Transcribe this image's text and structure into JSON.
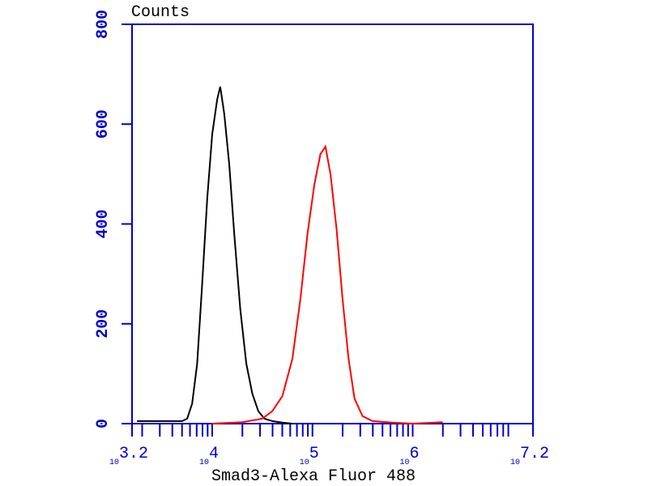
{
  "chart_data": {
    "type": "line",
    "y_label": "Counts",
    "x_label": "Smad3-Alexa Fluor 488",
    "x_scale": "log10",
    "x_tick_base": "10",
    "xlim": [
      3.2,
      7.2
    ],
    "xticks": [
      3.2,
      4,
      5,
      6,
      7.2
    ],
    "ylim": [
      0,
      800
    ],
    "yticks": [
      0,
      200,
      400,
      600,
      800
    ],
    "axis_color": "#0000cc",
    "series": [
      {
        "color": "#000000",
        "x": [
          3.25,
          3.4,
          3.55,
          3.7,
          3.75,
          3.8,
          3.85,
          3.9,
          3.95,
          4.0,
          4.05,
          4.08,
          4.12,
          4.17,
          4.22,
          4.28,
          4.34,
          4.4,
          4.46,
          4.52,
          4.6,
          4.7,
          4.8
        ],
        "values": [
          5,
          5,
          5,
          5,
          10,
          40,
          120,
          280,
          450,
          580,
          650,
          675,
          620,
          520,
          380,
          230,
          120,
          60,
          25,
          10,
          5,
          2,
          0
        ]
      },
      {
        "color": "#ff0000",
        "x": [
          4.0,
          4.3,
          4.5,
          4.6,
          4.7,
          4.8,
          4.88,
          4.95,
          5.02,
          5.08,
          5.13,
          5.18,
          5.24,
          5.3,
          5.36,
          5.42,
          5.5,
          5.6,
          5.8,
          6.0,
          6.3
        ],
        "values": [
          0,
          3,
          10,
          25,
          55,
          130,
          250,
          380,
          480,
          540,
          555,
          500,
          390,
          250,
          130,
          50,
          15,
          5,
          2,
          0,
          3
        ]
      }
    ]
  }
}
